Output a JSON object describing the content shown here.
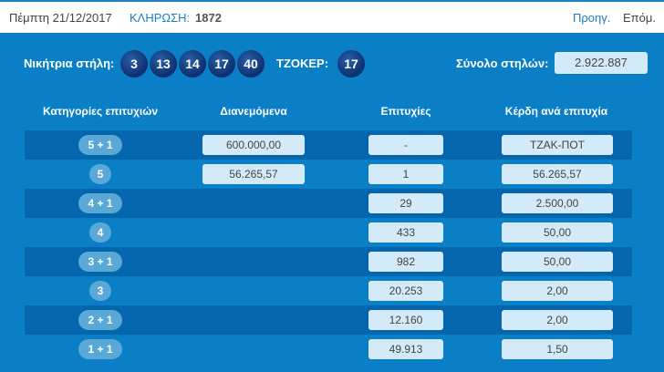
{
  "header": {
    "date": "Πέμπτη 21/12/2017",
    "draw_label": "ΚΛΗΡΩΣΗ:",
    "draw_number": "1872",
    "prev": "Προηγ.",
    "next": "Επόμ."
  },
  "winning": {
    "label": "Νικήτρια στήλη:",
    "numbers": [
      "3",
      "13",
      "14",
      "17",
      "40"
    ],
    "joker_label": "ΤΖΟΚΕΡ:",
    "joker": "17",
    "total_label": "Σύνολο στηλών:",
    "total": "2.922.887"
  },
  "table": {
    "headers": [
      "Κατηγορίες επιτυχιών",
      "Διανεμόμενα",
      "Επιτυχίες",
      "Κέρδη ανά επιτυχία"
    ],
    "rows": [
      {
        "cat": "5 + 1",
        "dist": "600.000,00",
        "wins": "-",
        "prize": "ΤΖΑΚ-ΠΟΤ"
      },
      {
        "cat": "5",
        "dist": "56.265,57",
        "wins": "1",
        "prize": "56.265,57"
      },
      {
        "cat": "4 + 1",
        "wins": "29",
        "prize": "2.500,00"
      },
      {
        "cat": "4",
        "wins": "433",
        "prize": "50,00"
      },
      {
        "cat": "3 + 1",
        "wins": "982",
        "prize": "50,00"
      },
      {
        "cat": "3",
        "wins": "20.253",
        "prize": "2,00"
      },
      {
        "cat": "2 + 1",
        "wins": "12.160",
        "prize": "2,00"
      },
      {
        "cat": "1 + 1",
        "wins": "49.913",
        "prize": "1,50"
      }
    ]
  }
}
